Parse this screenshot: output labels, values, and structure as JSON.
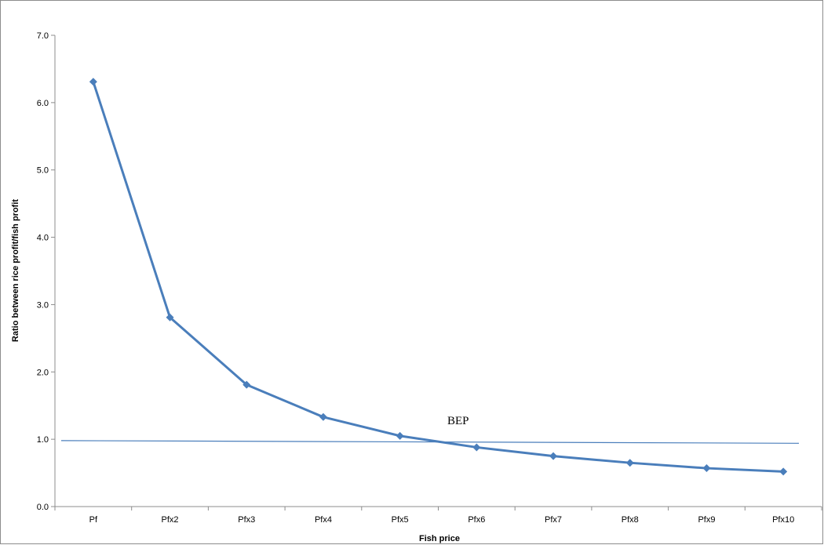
{
  "chart_data": {
    "type": "line",
    "title": "",
    "xlabel": "Fish price",
    "ylabel": "Ratio between rice profit/fish profit",
    "ylim": [
      0,
      7
    ],
    "y_ticks": [
      "0.0",
      "1.0",
      "2.0",
      "3.0",
      "4.0",
      "5.0",
      "6.0",
      "7.0"
    ],
    "categories": [
      "Pf",
      "Pfx2",
      "Pfx3",
      "Pfx4",
      "Pfx5",
      "Pfx6",
      "Pfx7",
      "Pfx8",
      "Pfx9",
      "Pfx10"
    ],
    "series": [
      {
        "values": [
          6.31,
          2.81,
          1.81,
          1.33,
          1.05,
          0.88,
          0.75,
          0.65,
          0.57,
          0.52
        ],
        "color": "#4a7ebb",
        "marker": "diamond"
      }
    ],
    "reference_line": {
      "y_start": 0.98,
      "y_end": 0.94,
      "color": "#4a7ebb"
    },
    "annotation": "BEP",
    "grid": false,
    "legend": "none"
  }
}
